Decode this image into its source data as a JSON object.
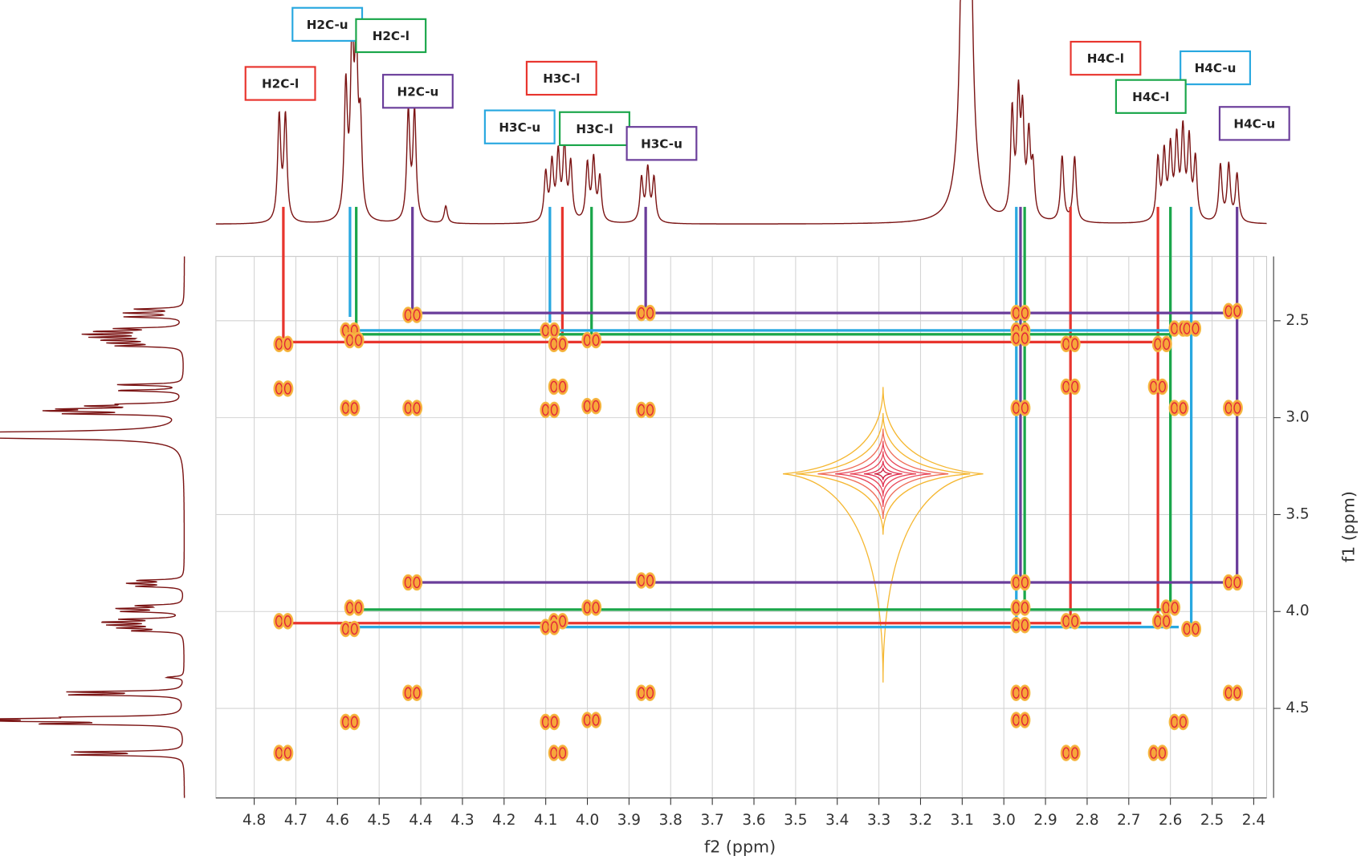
{
  "chart_data": {
    "type": "nmr-cosy",
    "x_label": "f2 (ppm)",
    "y_label": "f1 (ppm)",
    "xlim": [
      4.892,
      2.369
    ],
    "ylim": [
      2.168,
      4.962
    ],
    "xticks": [
      4.8,
      4.7,
      4.6,
      4.5,
      4.4,
      4.3,
      4.2,
      4.1,
      {
        "value": 4,
        "label": "4.0"
      },
      3.9,
      3.8,
      3.7,
      3.6,
      3.5,
      3.4,
      3.3,
      3.2,
      3.1,
      {
        "value": 3,
        "label": "3.0"
      },
      2.9,
      2.8,
      2.7,
      2.6,
      2.5,
      2.4
    ],
    "yticks": [
      2.5,
      {
        "value": 3,
        "label": "3.0"
      },
      3.5,
      {
        "value": 4,
        "label": "4.0"
      },
      4.5
    ],
    "grid": true,
    "spectrum_color": "#7b1414",
    "projection": {
      "ppm": [
        4.74,
        4.725,
        4.58,
        4.565,
        4.555,
        4.545,
        4.43,
        4.415,
        4.34,
        4.1,
        4.085,
        4.07,
        4.055,
        4.04,
        4.0,
        3.985,
        3.97,
        3.87,
        3.855,
        3.84,
        3.09,
        2.98,
        2.965,
        2.955,
        2.94,
        2.93,
        2.86,
        2.83,
        2.63,
        2.615,
        2.6,
        2.585,
        2.57,
        2.555,
        2.54,
        2.48,
        2.46,
        2.44
      ],
      "heights": [
        120,
        120,
        150,
        195,
        185,
        100,
        125,
        125,
        20,
        55,
        65,
        75,
        85,
        65,
        65,
        70,
        50,
        50,
        60,
        50,
        3000,
        120,
        130,
        110,
        90,
        55,
        75,
        75,
        70,
        75,
        80,
        90,
        100,
        90,
        70,
        65,
        65,
        55
      ]
    },
    "peaks": {
      "x": [
        4.42,
        3.86,
        2.96,
        2.45,
        4.57,
        4.09,
        2.96,
        2.58,
        2.55,
        4.73,
        4.56,
        4.07,
        3.99,
        2.96,
        2.84,
        2.62,
        4.73,
        4.07,
        2.84,
        2.63,
        4.57,
        4.42,
        4.09,
        3.99,
        3.86,
        2.96,
        2.58,
        2.45,
        4.42,
        3.86,
        2.96,
        2.45,
        4.56,
        3.99,
        2.96,
        2.6,
        4.73,
        4.57,
        4.07,
        4.09,
        2.96,
        2.84,
        2.62,
        2.55,
        4.42,
        3.86,
        2.96,
        2.45,
        4.57,
        4.09,
        3.99,
        2.96,
        2.58,
        4.73,
        4.07,
        2.84,
        2.63
      ],
      "y": [
        2.47,
        2.46,
        2.46,
        2.45,
        2.55,
        2.55,
        2.55,
        2.54,
        2.54,
        2.62,
        2.6,
        2.62,
        2.6,
        2.59,
        2.62,
        2.62,
        2.85,
        2.84,
        2.84,
        2.84,
        2.95,
        2.95,
        2.96,
        2.94,
        2.96,
        2.95,
        2.95,
        2.95,
        3.85,
        3.84,
        3.85,
        3.85,
        3.98,
        3.98,
        3.98,
        3.98,
        4.05,
        4.09,
        4.05,
        4.08,
        4.07,
        4.05,
        4.05,
        4.09,
        4.42,
        4.42,
        4.42,
        4.42,
        4.57,
        4.57,
        4.56,
        4.56,
        4.57,
        4.73,
        4.73,
        4.73,
        4.73
      ]
    },
    "diagonal_peak": {
      "x": 3.29,
      "y": 3.29
    },
    "annotations": [
      {
        "text": "H2C-u",
        "color": "#29a8e0"
      },
      {
        "text": "H2C-l",
        "color": "#1aa64a"
      },
      {
        "text": "H2C-l",
        "color": "#e8352e"
      },
      {
        "text": "H2C-u",
        "color": "#6a3d9a"
      },
      {
        "text": "H3C-l",
        "color": "#e8352e"
      },
      {
        "text": "H3C-u",
        "color": "#29a8e0"
      },
      {
        "text": "H3C-l",
        "color": "#1aa64a"
      },
      {
        "text": "H3C-u",
        "color": "#6a3d9a"
      },
      {
        "text": "H4C-l",
        "color": "#e8352e"
      },
      {
        "text": "H4C-u",
        "color": "#29a8e0"
      },
      {
        "text": "H4C-l",
        "color": "#1aa64a"
      },
      {
        "text": "H4C-u",
        "color": "#6a3d9a"
      }
    ],
    "vlines": [
      {
        "color": "#e8352e",
        "x": 4.73,
        "y": 2.62
      },
      {
        "color": "#29a8e0",
        "x": 4.57,
        "y": 2.48
      },
      {
        "color": "#1aa64a",
        "x": 4.555,
        "y": 2.55
      },
      {
        "color": "#6a3d9a",
        "x": 4.42,
        "y": 2.46
      },
      {
        "color": "#29a8e0",
        "x": 4.09,
        "y": 2.51
      },
      {
        "color": "#e8352e",
        "x": 4.06,
        "y": 2.59
      },
      {
        "color": "#1aa64a",
        "x": 3.99,
        "y": 2.57
      },
      {
        "color": "#6a3d9a",
        "x": 3.86,
        "y": 2.46
      },
      {
        "color": "#29a8e0",
        "x": 2.97,
        "y": 4.07
      },
      {
        "color": "#6a3d9a",
        "x": 2.96,
        "y": 3.85
      },
      {
        "color": "#1aa64a",
        "x": 2.95,
        "y": 3.99
      },
      {
        "color": "#e8352e",
        "x": 2.84,
        "y": 4.07
      },
      {
        "color": "#e8352e",
        "x": 2.63,
        "y": 4.06
      },
      {
        "color": "#1aa64a",
        "x": 2.6,
        "y": 3.99
      },
      {
        "color": "#29a8e0",
        "x": 2.55,
        "y": 4.07
      },
      {
        "color": "#6a3d9a",
        "x": 2.44,
        "y": 3.85
      }
    ],
    "hlines": [
      {
        "color": "#6a3d9a",
        "y": 2.46,
        "x1": 4.42,
        "x2": 2.44
      },
      {
        "color": "#29a8e0",
        "y": 2.55,
        "x1": 4.57,
        "x2": 2.55
      },
      {
        "color": "#1aa64a",
        "y": 2.57,
        "x1": 4.555,
        "x2": 2.6
      },
      {
        "color": "#e8352e",
        "y": 2.61,
        "x1": 4.73,
        "x2": 2.63
      },
      {
        "color": "#6a3d9a",
        "y": 3.85,
        "x1": 4.42,
        "x2": 2.44
      },
      {
        "color": "#1aa64a",
        "y": 3.99,
        "x1": 4.56,
        "x2": 2.6
      },
      {
        "color": "#e8352e",
        "y": 4.06,
        "x1": 4.73,
        "x2": 2.67
      },
      {
        "color": "#29a8e0",
        "y": 4.08,
        "x1": 4.57,
        "x2": 2.58
      }
    ]
  }
}
